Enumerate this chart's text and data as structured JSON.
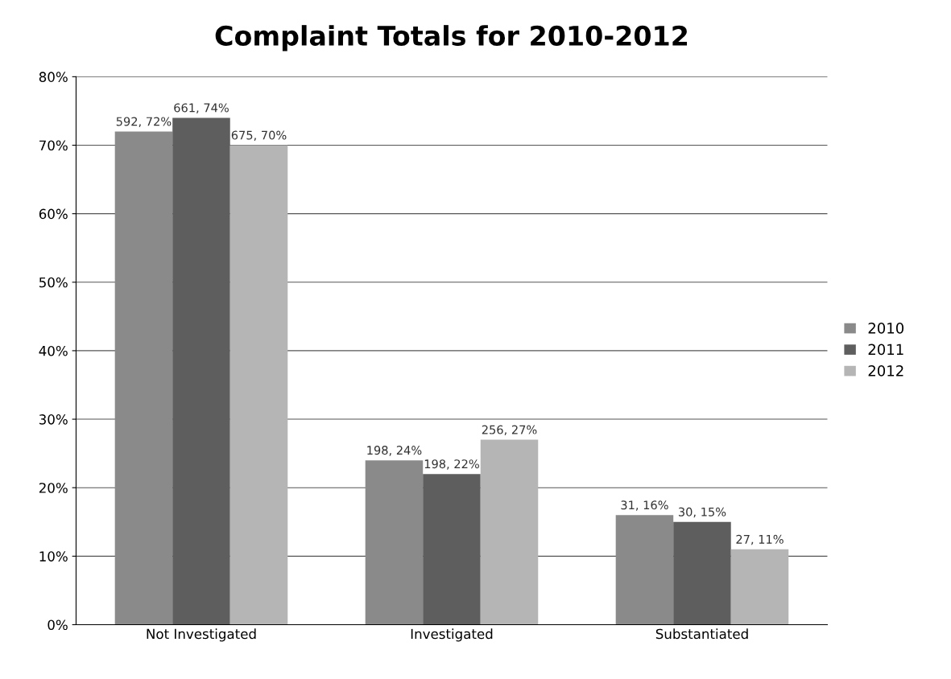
{
  "chart_data": {
    "type": "bar",
    "title": "Complaint Totals for 2010-2012",
    "categories": [
      "Not Investigated",
      "Investigated",
      "Substantiated"
    ],
    "series": [
      {
        "name": "2010",
        "color": "#8a8a8a",
        "values": [
          72,
          24,
          16
        ],
        "value_labels": [
          "592, 72%",
          "198, 24%",
          "31, 16%"
        ]
      },
      {
        "name": "2011",
        "color": "#5e5e5e",
        "values": [
          74,
          22,
          15
        ],
        "value_labels": [
          "661, 74%",
          "198, 22%",
          "30, 15%"
        ]
      },
      {
        "name": "2012",
        "color": "#b5b5b5",
        "values": [
          70,
          27,
          11
        ],
        "value_labels": [
          "675, 70%",
          "256, 27%",
          "27, 11%"
        ]
      }
    ],
    "ylim": [
      0,
      80
    ],
    "yticks": [
      {
        "value": 0,
        "label": "0%"
      },
      {
        "value": 10,
        "label": "10%"
      },
      {
        "value": 20,
        "label": "20%"
      },
      {
        "value": 30,
        "label": "30%"
      },
      {
        "value": 40,
        "label": "40%"
      },
      {
        "value": 50,
        "label": "50%"
      },
      {
        "value": 60,
        "label": "60%"
      },
      {
        "value": 70,
        "label": "70%"
      },
      {
        "value": 80,
        "label": "80%"
      }
    ],
    "grid": "y",
    "legend": "right"
  }
}
